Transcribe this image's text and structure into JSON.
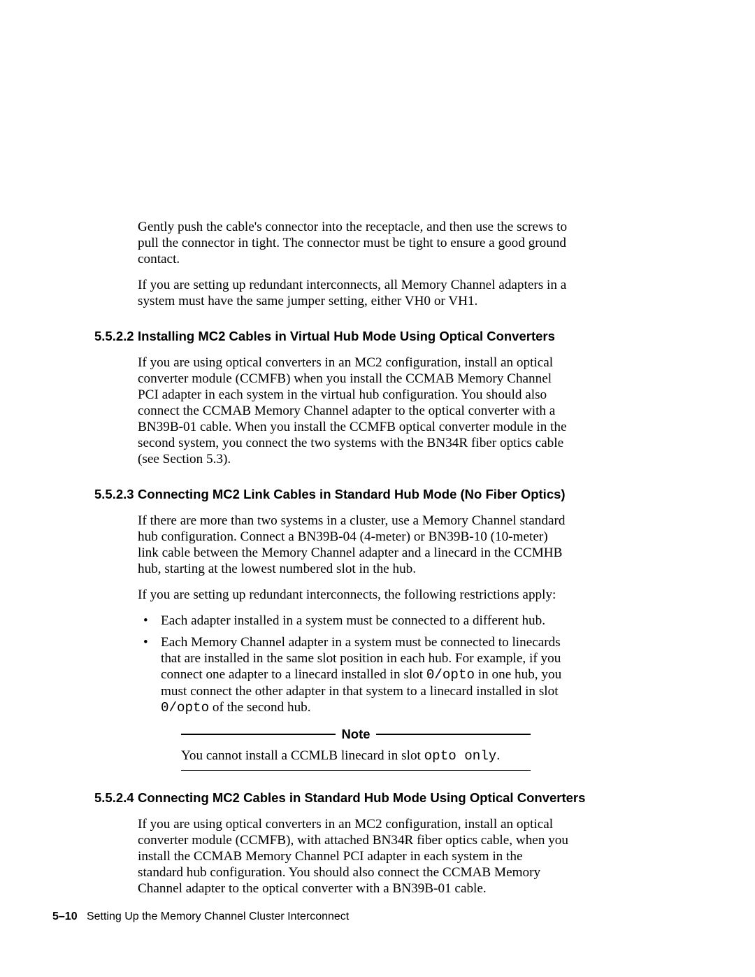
{
  "intro": {
    "p1": "Gently push the cable's connector into the receptacle, and then use the screws to pull the connector in tight. The connector must be tight to ensure a good ground contact.",
    "p2": "If you are setting up redundant interconnects, all Memory Channel adapters in a system must have the same jumper setting, either VH0 or VH1."
  },
  "s5522": {
    "num": "5.5.2.2",
    "title": "Installing MC2 Cables in Virtual Hub Mode Using Optical Converters",
    "p1": "If you are using optical converters in an MC2 configuration, install an optical converter module (CCMFB) when you install the CCMAB Memory Channel PCI adapter in each system in the virtual hub configuration. You should also connect the CCMAB Memory Channel adapter to the optical converter with a BN39B-01 cable. When you install the CCMFB optical converter module in the second system, you connect the two systems with the BN34R fiber optics cable (see Section 5.3)."
  },
  "s5523": {
    "num": "5.5.2.3",
    "title": "Connecting MC2 Link Cables in Standard Hub Mode (No Fiber Optics)",
    "p1": "If there are more than two systems in a cluster, use a Memory Channel standard hub configuration. Connect a BN39B-04 (4-meter) or BN39B-10 (10-meter) link cable between the Memory Channel adapter and a linecard in the CCMHB hub, starting at the lowest numbered slot in the hub.",
    "p2": "If you are setting up redundant interconnects, the following restrictions apply:",
    "b1": "Each adapter installed in a system must be connected to a different hub.",
    "b2a": "Each Memory Channel adapter in a system must be connected to linecards that are installed in the same slot position in each hub. For example, if you connect one adapter to a linecard installed in slot ",
    "b2m1": "0/opto",
    "b2b": " in one hub, you must connect the other adapter in that system to a linecard installed in slot ",
    "b2m2": "0/opto",
    "b2c": " of the second hub.",
    "note_label": "Note",
    "note_a": "You cannot install a CCMLB linecard in slot ",
    "note_m": "opto only",
    "note_b": "."
  },
  "s5524": {
    "num": "5.5.2.4",
    "title": "Connecting MC2 Cables in Standard Hub Mode Using Optical Converters",
    "p1": "If you are using optical converters in an MC2 configuration, install an optical converter module (CCMFB), with attached BN34R fiber optics cable, when you install the CCMAB Memory Channel PCI adapter in each system in the standard hub configuration. You should also connect the CCMAB Memory Channel adapter to the optical converter with a BN39B-01 cable."
  },
  "footer": {
    "pagenum": "5–10",
    "title": "Setting Up the Memory Channel Cluster Interconnect"
  }
}
